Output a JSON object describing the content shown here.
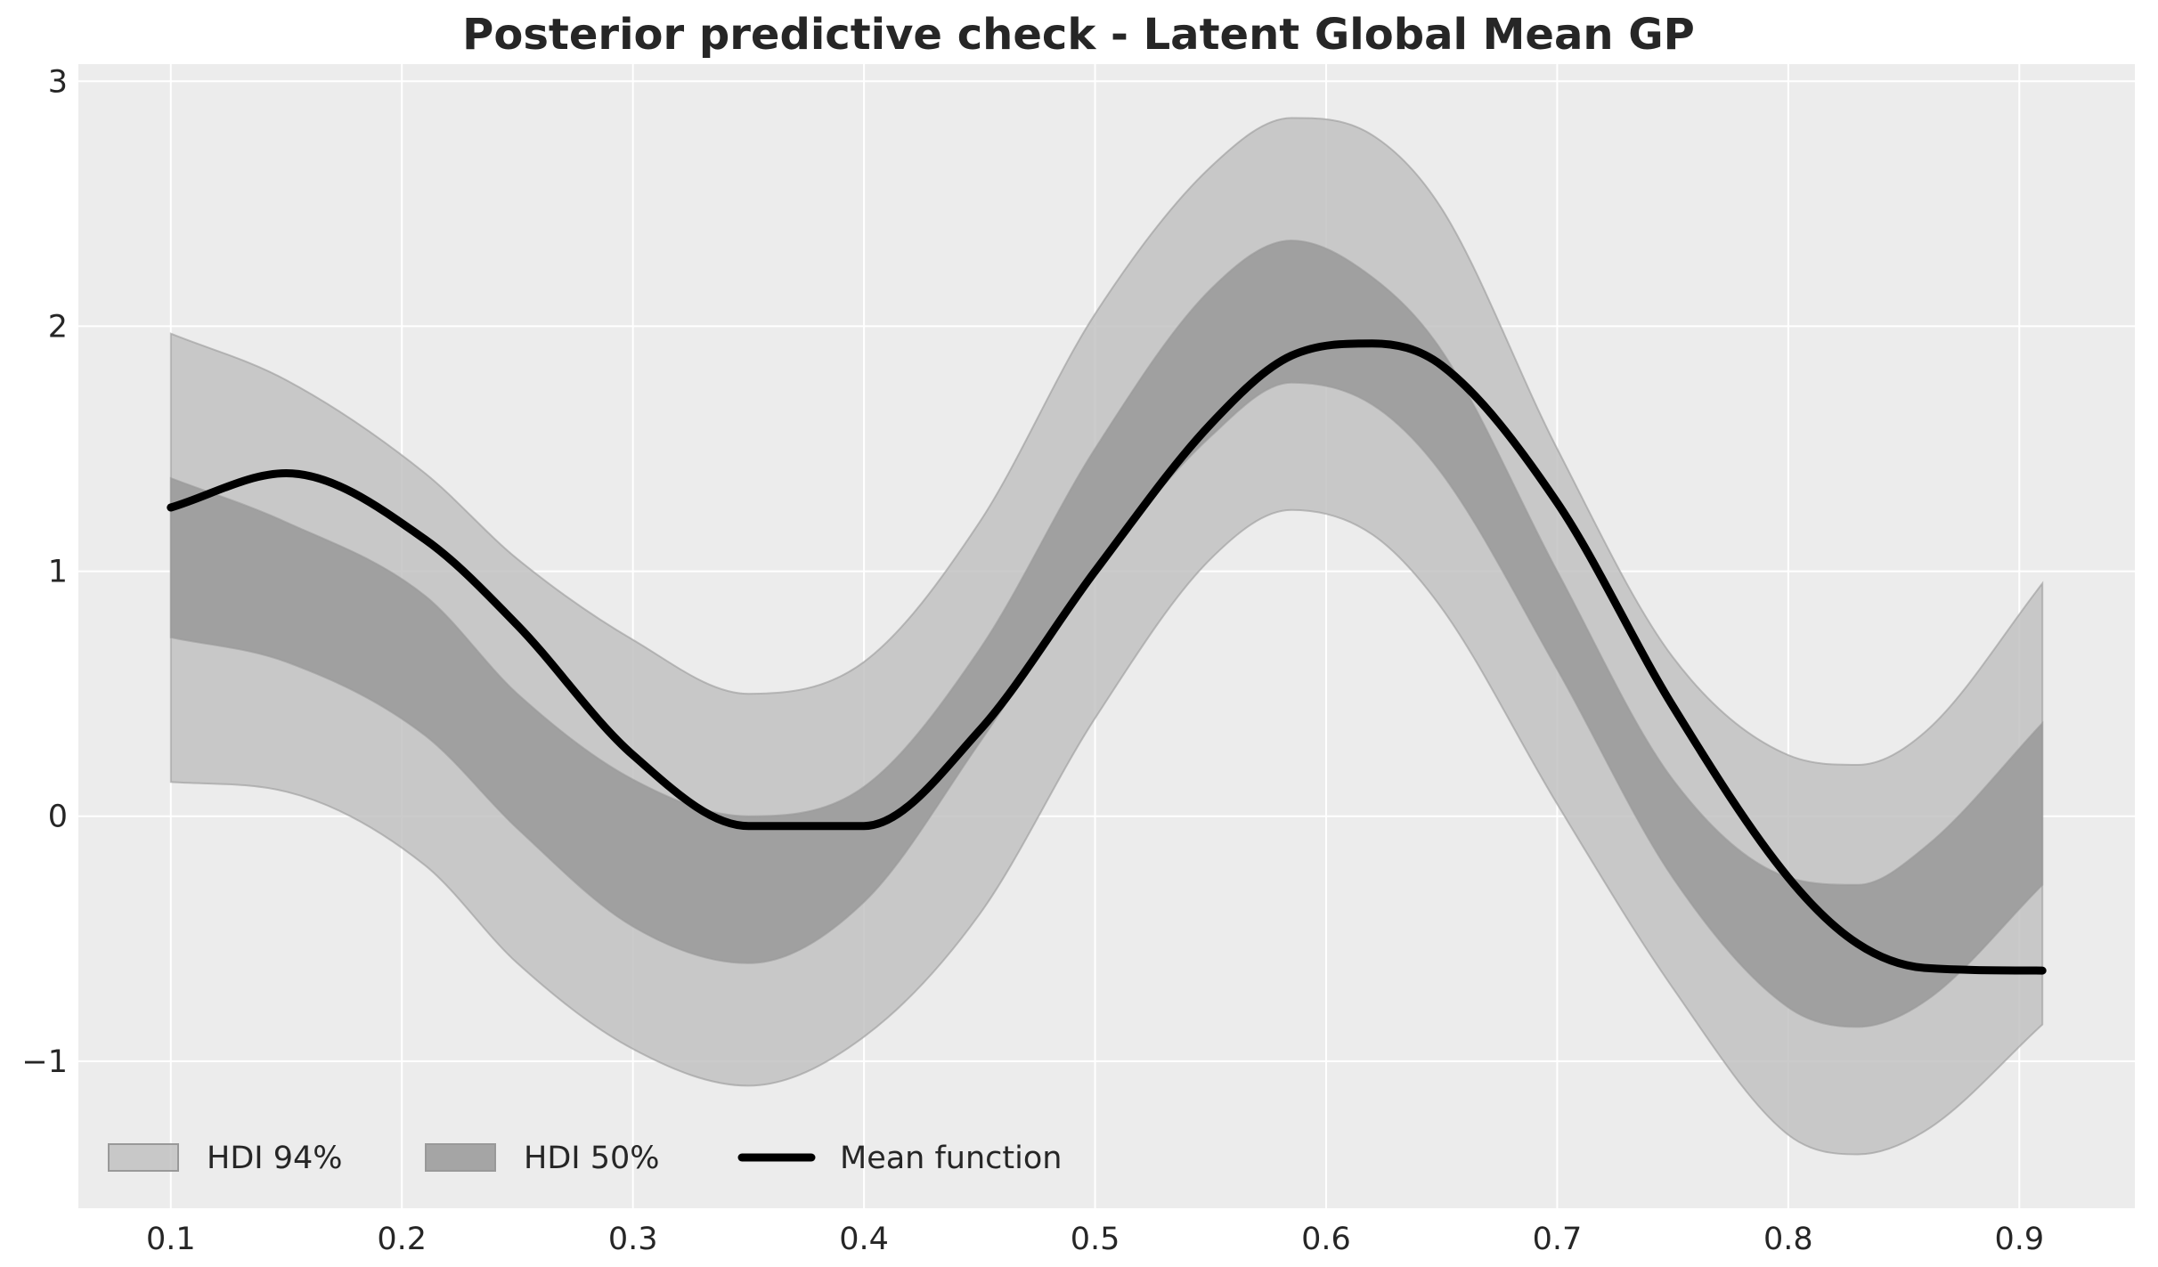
{
  "chart_data": {
    "type": "line",
    "title": "Posterior predictive check - Latent Global Mean GP",
    "xlabel": "",
    "ylabel": "",
    "xlim": [
      0.06,
      0.95
    ],
    "ylim": [
      -1.6,
      3.07
    ],
    "xticks": [
      0.1,
      0.2,
      0.3,
      0.4,
      0.5,
      0.6,
      0.7,
      0.8,
      0.9
    ],
    "xtick_labels": [
      "0.1",
      "0.2",
      "0.3",
      "0.4",
      "0.5",
      "0.6",
      "0.7",
      "0.8",
      "0.9"
    ],
    "yticks": [
      -1,
      0,
      1,
      2,
      3
    ],
    "ytick_labels": [
      "−1",
      "0",
      "1",
      "2",
      "3"
    ],
    "grid": true,
    "legend_position": "lower-left",
    "x": [
      0.1,
      0.15,
      0.21,
      0.25,
      0.3,
      0.35,
      0.4,
      0.45,
      0.5,
      0.55,
      0.585,
      0.62,
      0.65,
      0.7,
      0.75,
      0.8,
      0.83,
      0.86,
      0.91
    ],
    "series": [
      {
        "name": "HDI 94%",
        "kind": "band",
        "color": "#c2c2c2",
        "lower": [
          0.14,
          0.1,
          -0.2,
          -0.6,
          -0.95,
          -1.1,
          -0.9,
          -0.4,
          0.4,
          1.05,
          1.25,
          1.15,
          0.85,
          0.05,
          -0.7,
          -1.3,
          -1.38,
          -1.28,
          -0.85
        ],
        "upper": [
          1.97,
          1.78,
          1.4,
          1.05,
          0.72,
          0.5,
          0.63,
          1.2,
          2.05,
          2.65,
          2.85,
          2.78,
          2.48,
          1.5,
          0.65,
          0.25,
          0.21,
          0.35,
          0.95
        ]
      },
      {
        "name": "HDI 50%",
        "kind": "band",
        "color": "#999999",
        "lower": [
          0.73,
          0.63,
          0.33,
          -0.05,
          -0.45,
          -0.6,
          -0.35,
          0.3,
          1.0,
          1.55,
          1.77,
          1.68,
          1.4,
          0.6,
          -0.25,
          -0.78,
          -0.86,
          -0.75,
          -0.28
        ],
        "upper": [
          1.38,
          1.2,
          0.9,
          0.5,
          0.15,
          0.0,
          0.12,
          0.68,
          1.5,
          2.15,
          2.35,
          2.2,
          1.9,
          1.0,
          0.15,
          -0.25,
          -0.28,
          -0.12,
          0.38
        ]
      },
      {
        "name": "Mean function",
        "kind": "line",
        "color": "#000000",
        "values": [
          1.26,
          1.4,
          1.13,
          0.78,
          0.25,
          -0.04,
          -0.04,
          0.35,
          1.0,
          1.6,
          1.88,
          1.93,
          1.84,
          1.28,
          0.45,
          -0.25,
          -0.52,
          -0.62,
          -0.63
        ]
      }
    ]
  }
}
